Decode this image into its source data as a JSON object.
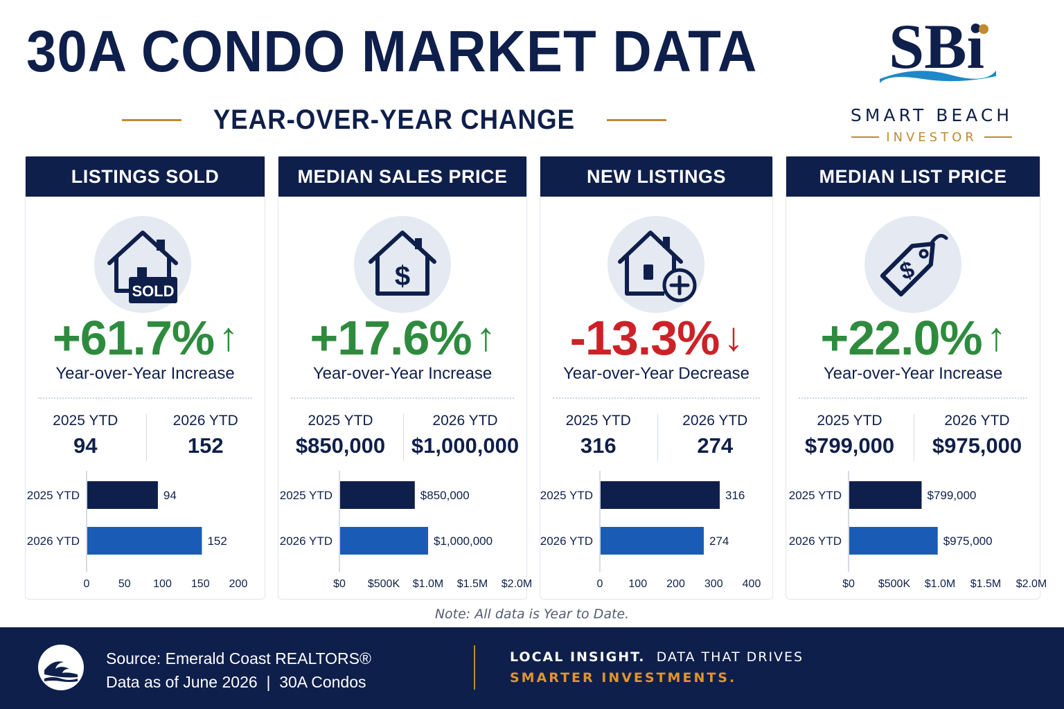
{
  "header": {
    "title": "30A CONDO MARKET DATA",
    "subtitle": "YEAR-OVER-YEAR CHANGE"
  },
  "logo": {
    "mark": "SBi",
    "name": "SMART BEACH",
    "sub": "INVESTOR"
  },
  "colors": {
    "navy": "#0f1f4b",
    "blue_bar": "#1a5bb5",
    "green": "#2e8b3e",
    "red": "#cc2227",
    "gold": "#c08a2e"
  },
  "cards": [
    {
      "title": "LISTINGS SOLD",
      "icon": "house-sold-icon",
      "icon_badge": "SOLD",
      "change": "+61.7%",
      "direction": "up",
      "change_label": "Year-over-Year Increase",
      "left_label": "2025 YTD",
      "left_value": "94",
      "right_label": "2026 YTD",
      "right_value": "152"
    },
    {
      "title": "MEDIAN SALES PRICE",
      "icon": "house-dollar-icon",
      "change": "+17.6%",
      "direction": "up",
      "change_label": "Year-over-Year Increase",
      "left_label": "2025 YTD",
      "left_value": "$850,000",
      "right_label": "2026 YTD",
      "right_value": "$1,000,000"
    },
    {
      "title": "NEW LISTINGS",
      "icon": "house-plus-icon",
      "change": "-13.3%",
      "direction": "down",
      "change_label": "Year-over-Year Decrease",
      "left_label": "2025 YTD",
      "left_value": "316",
      "right_label": "2026 YTD",
      "right_value": "274"
    },
    {
      "title": "MEDIAN LIST PRICE",
      "icon": "price-tag-icon",
      "change": "+22.0%",
      "direction": "up",
      "change_label": "Year-over-Year Increase",
      "left_label": "2025 YTD",
      "left_value": "$799,000",
      "right_label": "2026 YTD",
      "right_value": "$975,000"
    }
  ],
  "chart_data": [
    {
      "type": "bar",
      "orientation": "horizontal",
      "categories": [
        "2025 YTD",
        "2026 YTD"
      ],
      "values": [
        94,
        152
      ],
      "value_labels": [
        "94",
        "152"
      ],
      "xlim": [
        0,
        200
      ],
      "xticks": [
        0,
        50,
        100,
        150,
        200
      ],
      "xtick_labels": [
        "0",
        "50",
        "100",
        "150",
        "200"
      ],
      "bar_colors": [
        "#0f1f4b",
        "#1a5bb5"
      ]
    },
    {
      "type": "bar",
      "orientation": "horizontal",
      "categories": [
        "2025 YTD",
        "2026 YTD"
      ],
      "values": [
        850000,
        1000000
      ],
      "value_labels": [
        "$850,000",
        "$1,000,000"
      ],
      "xlim": [
        0,
        2000000
      ],
      "xticks": [
        0,
        500000,
        1000000,
        1500000,
        2000000
      ],
      "xtick_labels": [
        "$0",
        "$500K",
        "$1.0M",
        "$1.5M",
        "$2.0M"
      ],
      "bar_colors": [
        "#0f1f4b",
        "#1a5bb5"
      ]
    },
    {
      "type": "bar",
      "orientation": "horizontal",
      "categories": [
        "2025 YTD",
        "2026 YTD"
      ],
      "values": [
        316,
        274
      ],
      "value_labels": [
        "316",
        "274"
      ],
      "xlim": [
        0,
        400
      ],
      "xticks": [
        0,
        100,
        200,
        300,
        400
      ],
      "xtick_labels": [
        "0",
        "100",
        "200",
        "300",
        "400"
      ],
      "bar_colors": [
        "#0f1f4b",
        "#1a5bb5"
      ]
    },
    {
      "type": "bar",
      "orientation": "horizontal",
      "categories": [
        "2025 YTD",
        "2026 YTD"
      ],
      "values": [
        799000,
        975000
      ],
      "value_labels": [
        "$799,000",
        "$975,000"
      ],
      "xlim": [
        0,
        2000000
      ],
      "xticks": [
        0,
        500000,
        1000000,
        1500000,
        2000000
      ],
      "xtick_labels": [
        "$0",
        "$500K",
        "$1.0M",
        "$1.5M",
        "$2.0M"
      ],
      "bar_colors": [
        "#0f1f4b",
        "#1a5bb5"
      ]
    }
  ],
  "note": "Note: All data is Year to Date.",
  "footer": {
    "source": "Source: Emerald Coast REALTORS®",
    "data_as_of": "Data as of June 2026  |  30A Condos",
    "tagline_bold": "LOCAL INSIGHT.",
    "tagline_rest": "DATA THAT DRIVES",
    "tagline_line2": "SMARTER INVESTMENTS."
  }
}
